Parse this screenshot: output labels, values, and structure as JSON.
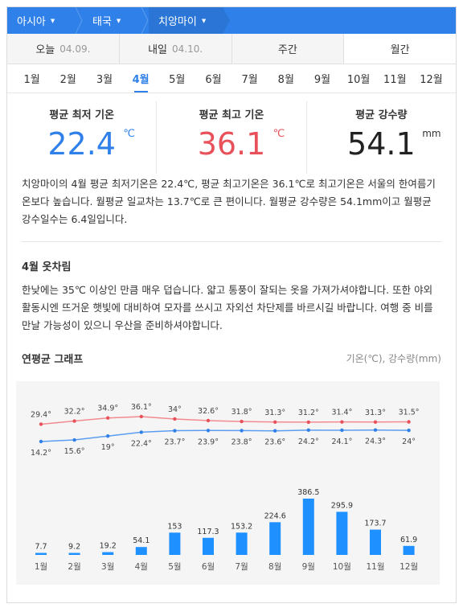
{
  "breadcrumb": [
    "아시아",
    "태국",
    "치앙마이"
  ],
  "day_tabs": [
    {
      "label": "오늘",
      "date": "04.09."
    },
    {
      "label": "내일",
      "date": "04.10."
    },
    {
      "label": "주간",
      "date": ""
    },
    {
      "label": "월간",
      "date": ""
    }
  ],
  "months": [
    "1월",
    "2월",
    "3월",
    "4월",
    "5월",
    "6월",
    "7월",
    "8월",
    "9월",
    "10월",
    "11월",
    "12월"
  ],
  "active_month_index": 3,
  "stats": {
    "min": {
      "title": "평균 최저 기온",
      "value": "22.4",
      "unit": "℃"
    },
    "max": {
      "title": "평균 최고 기온",
      "value": "36.1",
      "unit": "℃"
    },
    "rain": {
      "title": "평균 강수량",
      "value": "54.1",
      "unit": "mm"
    }
  },
  "summary": "치앙마이의 4월 평균 최저기온은 22.4℃, 평균 최고기온은 36.1℃로 최고기온은 서울의 한여름기온보다 높습니다. 월평균 일교차는 13.7℃로 큰 편이니다. 월평균 강수량은 54.1mm이고 월평균 강수일수는 6.4일입니다.",
  "clothing": {
    "title": "4월 옷차림",
    "text": "한낮에는 35℃ 이상인 만큼 매우 덥습니다. 얇고 통풍이 잘되는 옷을 가져가셔야합니다. 또한 야외활동시엔 뜨거운 햇빛에 대비하여 모자를 쓰시고 자외선 차단제를 바르시길 바랍니다. 여행 중 비를 만날 가능성이 있으니 우산을 준비하셔야합니다."
  },
  "graph": {
    "title": "연평균 그래프",
    "units": "기온(℃), 강수량(mm)"
  },
  "colors": {
    "accent": "#2f80e8",
    "max_line": "#f28b8f",
    "min_line": "#5b9df0",
    "bar": "#1e90ff"
  },
  "chart_data": {
    "type": "line+bar",
    "categories": [
      "1월",
      "2월",
      "3월",
      "4월",
      "5월",
      "6월",
      "7월",
      "8월",
      "9월",
      "10월",
      "11월",
      "12월"
    ],
    "series": [
      {
        "name": "최고",
        "type": "line",
        "values": [
          29.4,
          32.2,
          34.9,
          36.1,
          34,
          32.6,
          31.8,
          31.3,
          31.2,
          31.4,
          31.3,
          31.5
        ],
        "labels": [
          "29.4°",
          "32.2°",
          "34.9°",
          "36.1°",
          "34°",
          "32.6°",
          "31.8°",
          "31.3°",
          "31.2°",
          "31.4°",
          "31.3°",
          "31.5°"
        ]
      },
      {
        "name": "최저",
        "type": "line",
        "values": [
          14.2,
          15.6,
          19,
          22.4,
          23.7,
          23.9,
          23.8,
          23.6,
          24.2,
          24.1,
          24.3,
          24
        ],
        "labels": [
          "14.2°",
          "15.6°",
          "19°",
          "22.4°",
          "23.7°",
          "23.9°",
          "23.8°",
          "23.6°",
          "24.2°",
          "24.1°",
          "24.3°",
          "24°"
        ]
      },
      {
        "name": "강수량",
        "type": "bar",
        "values": [
          7.7,
          9.2,
          19.2,
          54.1,
          153,
          117.3,
          153.2,
          224.6,
          386.5,
          295.9,
          173.7,
          61.9
        ],
        "labels": [
          "7.7",
          "9.2",
          "19.2",
          "54.1",
          "153",
          "117.3",
          "153.2",
          "224.6",
          "386.5",
          "295.9",
          "173.7",
          "61.9"
        ]
      }
    ],
    "grid": false
  }
}
